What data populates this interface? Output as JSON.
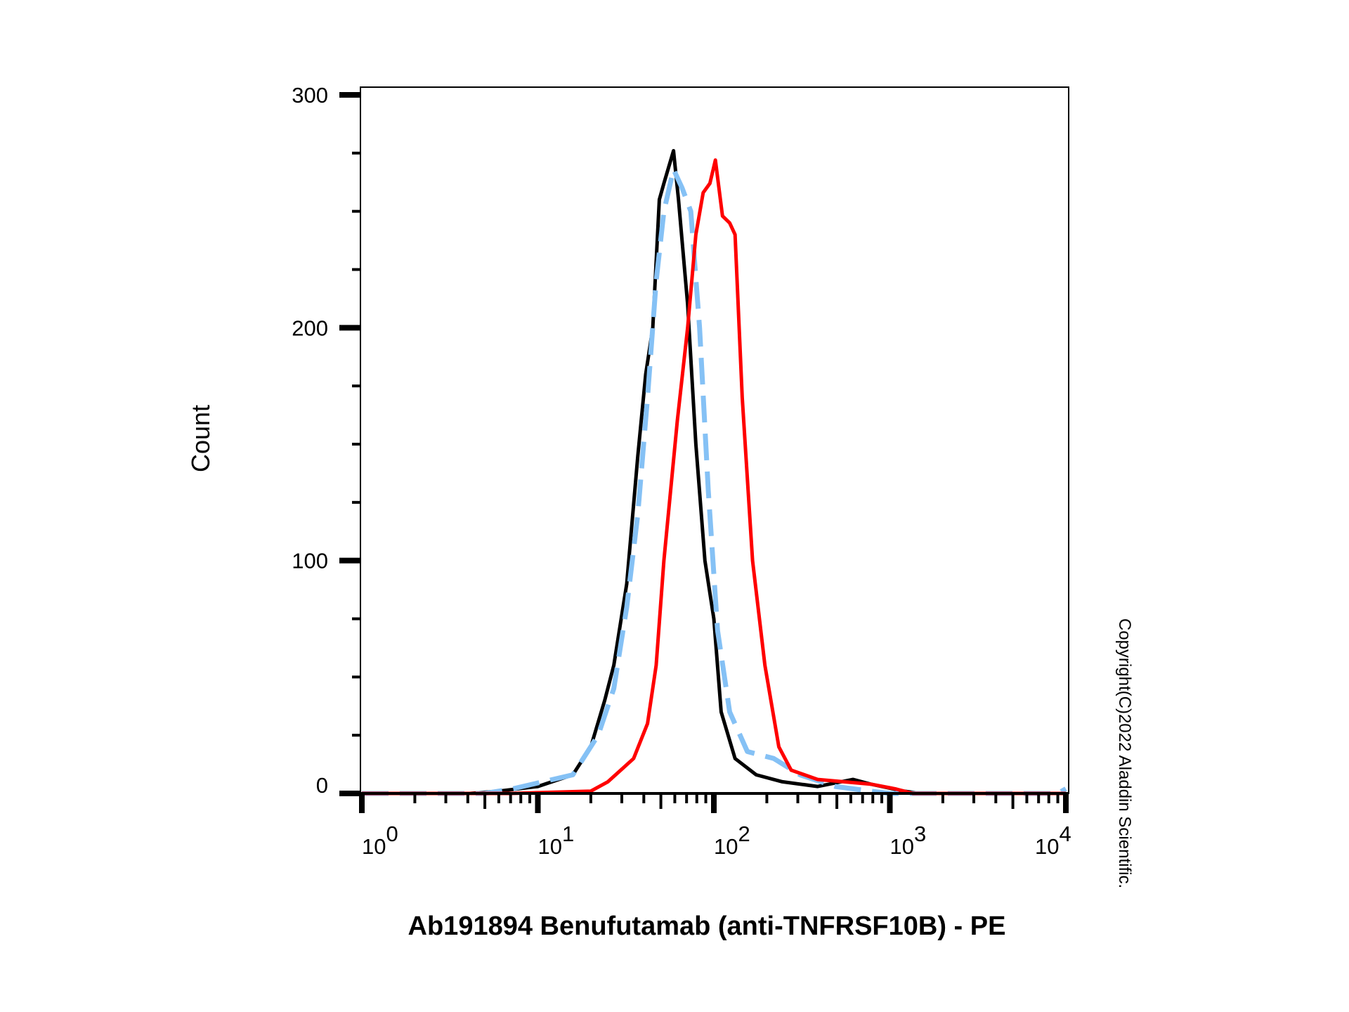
{
  "chart_data": {
    "type": "line",
    "title": "",
    "xlabel": "Ab191894 Benufutamab (anti-TNFRSF10B) - PE",
    "ylabel": "Count",
    "xscale": "log",
    "xlim": [
      1,
      10000
    ],
    "ylim": [
      0,
      303
    ],
    "x_ticks": [
      {
        "base": "10",
        "exp": "0",
        "value": 1
      },
      {
        "base": "10",
        "exp": "1",
        "value": 10
      },
      {
        "base": "10",
        "exp": "2",
        "value": 100
      },
      {
        "base": "10",
        "exp": "3",
        "value": 1000
      },
      {
        "base": "10",
        "exp": "4",
        "value": 10000
      }
    ],
    "y_ticks": [
      {
        "label": "0",
        "value": 0
      },
      {
        "label": "100",
        "value": 100
      },
      {
        "label": "200",
        "value": 200
      },
      {
        "label": "300",
        "value": 300
      }
    ],
    "grid": false,
    "copyright": "Copyright(C)2022 Aladdin Scientific.",
    "series": [
      {
        "name": "black-solid",
        "color": "#000000",
        "dashed": false,
        "x": [
          1,
          4.1,
          6,
          10,
          15.8,
          20,
          24,
          27,
          32,
          37,
          41,
          45,
          49,
          52,
          59,
          63,
          71,
          79,
          89,
          100,
          110,
          132,
          174,
          245,
          389,
          617,
          776,
          1202,
          1500,
          10000
        ],
        "y": [
          0,
          0,
          1,
          3,
          8,
          20,
          40,
          55,
          90,
          145,
          180,
          200,
          255,
          262,
          276,
          255,
          210,
          150,
          100,
          75,
          35,
          15,
          8,
          5,
          3,
          6,
          4,
          1,
          0,
          0
        ]
      },
      {
        "name": "blue-dashed",
        "color": "#85C1F5",
        "dashed": true,
        "x": [
          1,
          5,
          7.2,
          15.8,
          22,
          27,
          32,
          37,
          42,
          47,
          52,
          59,
          66,
          74,
          83,
          93,
          105,
          123,
          155,
          219,
          309,
          490,
          776,
          1000,
          9000,
          10000
        ],
        "y": [
          0,
          0,
          2,
          8,
          25,
          45,
          80,
          120,
          170,
          220,
          250,
          268,
          260,
          250,
          200,
          130,
          70,
          35,
          18,
          15,
          8,
          3,
          1,
          0,
          0,
          2
        ]
      },
      {
        "name": "red-solid",
        "color": "#FF0000",
        "dashed": false,
        "x": [
          1,
          7,
          20,
          25,
          35,
          42,
          47,
          52,
          62,
          71,
          79,
          87,
          95,
          102,
          112,
          123,
          132,
          145,
          166,
          195,
          234,
          275,
          389,
          776,
          1072,
          1350,
          10000
        ],
        "y": [
          0,
          0,
          1,
          5,
          15,
          30,
          55,
          100,
          160,
          200,
          240,
          258,
          262,
          272,
          248,
          245,
          240,
          170,
          100,
          55,
          20,
          10,
          6,
          4,
          2,
          0,
          0
        ]
      }
    ]
  }
}
